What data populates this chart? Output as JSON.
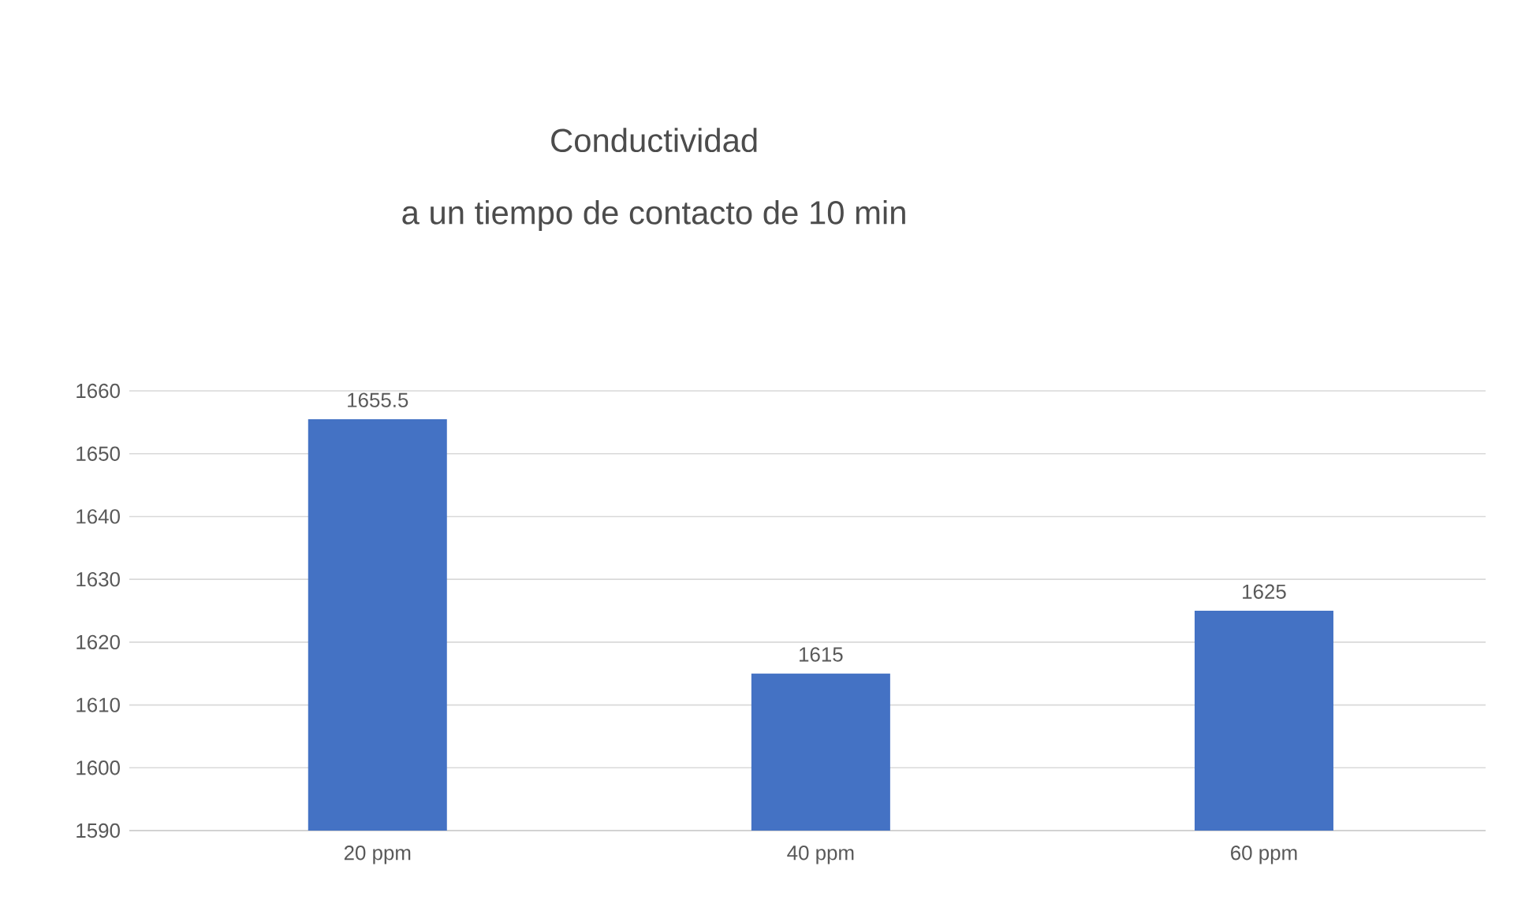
{
  "chart_data": {
    "type": "bar",
    "title": "Conductividad",
    "subtitle": "a un tiempo de contacto de 10  min",
    "categories": [
      "20 ppm",
      "40 ppm",
      "60 ppm"
    ],
    "values": [
      1655.5,
      1615,
      1625
    ],
    "color": "#4472c4",
    "ylim": [
      1590,
      1660
    ],
    "yticks": [
      1590,
      1600,
      1610,
      1620,
      1630,
      1640,
      1650,
      1660
    ],
    "grid": "y",
    "data_labels": true
  }
}
